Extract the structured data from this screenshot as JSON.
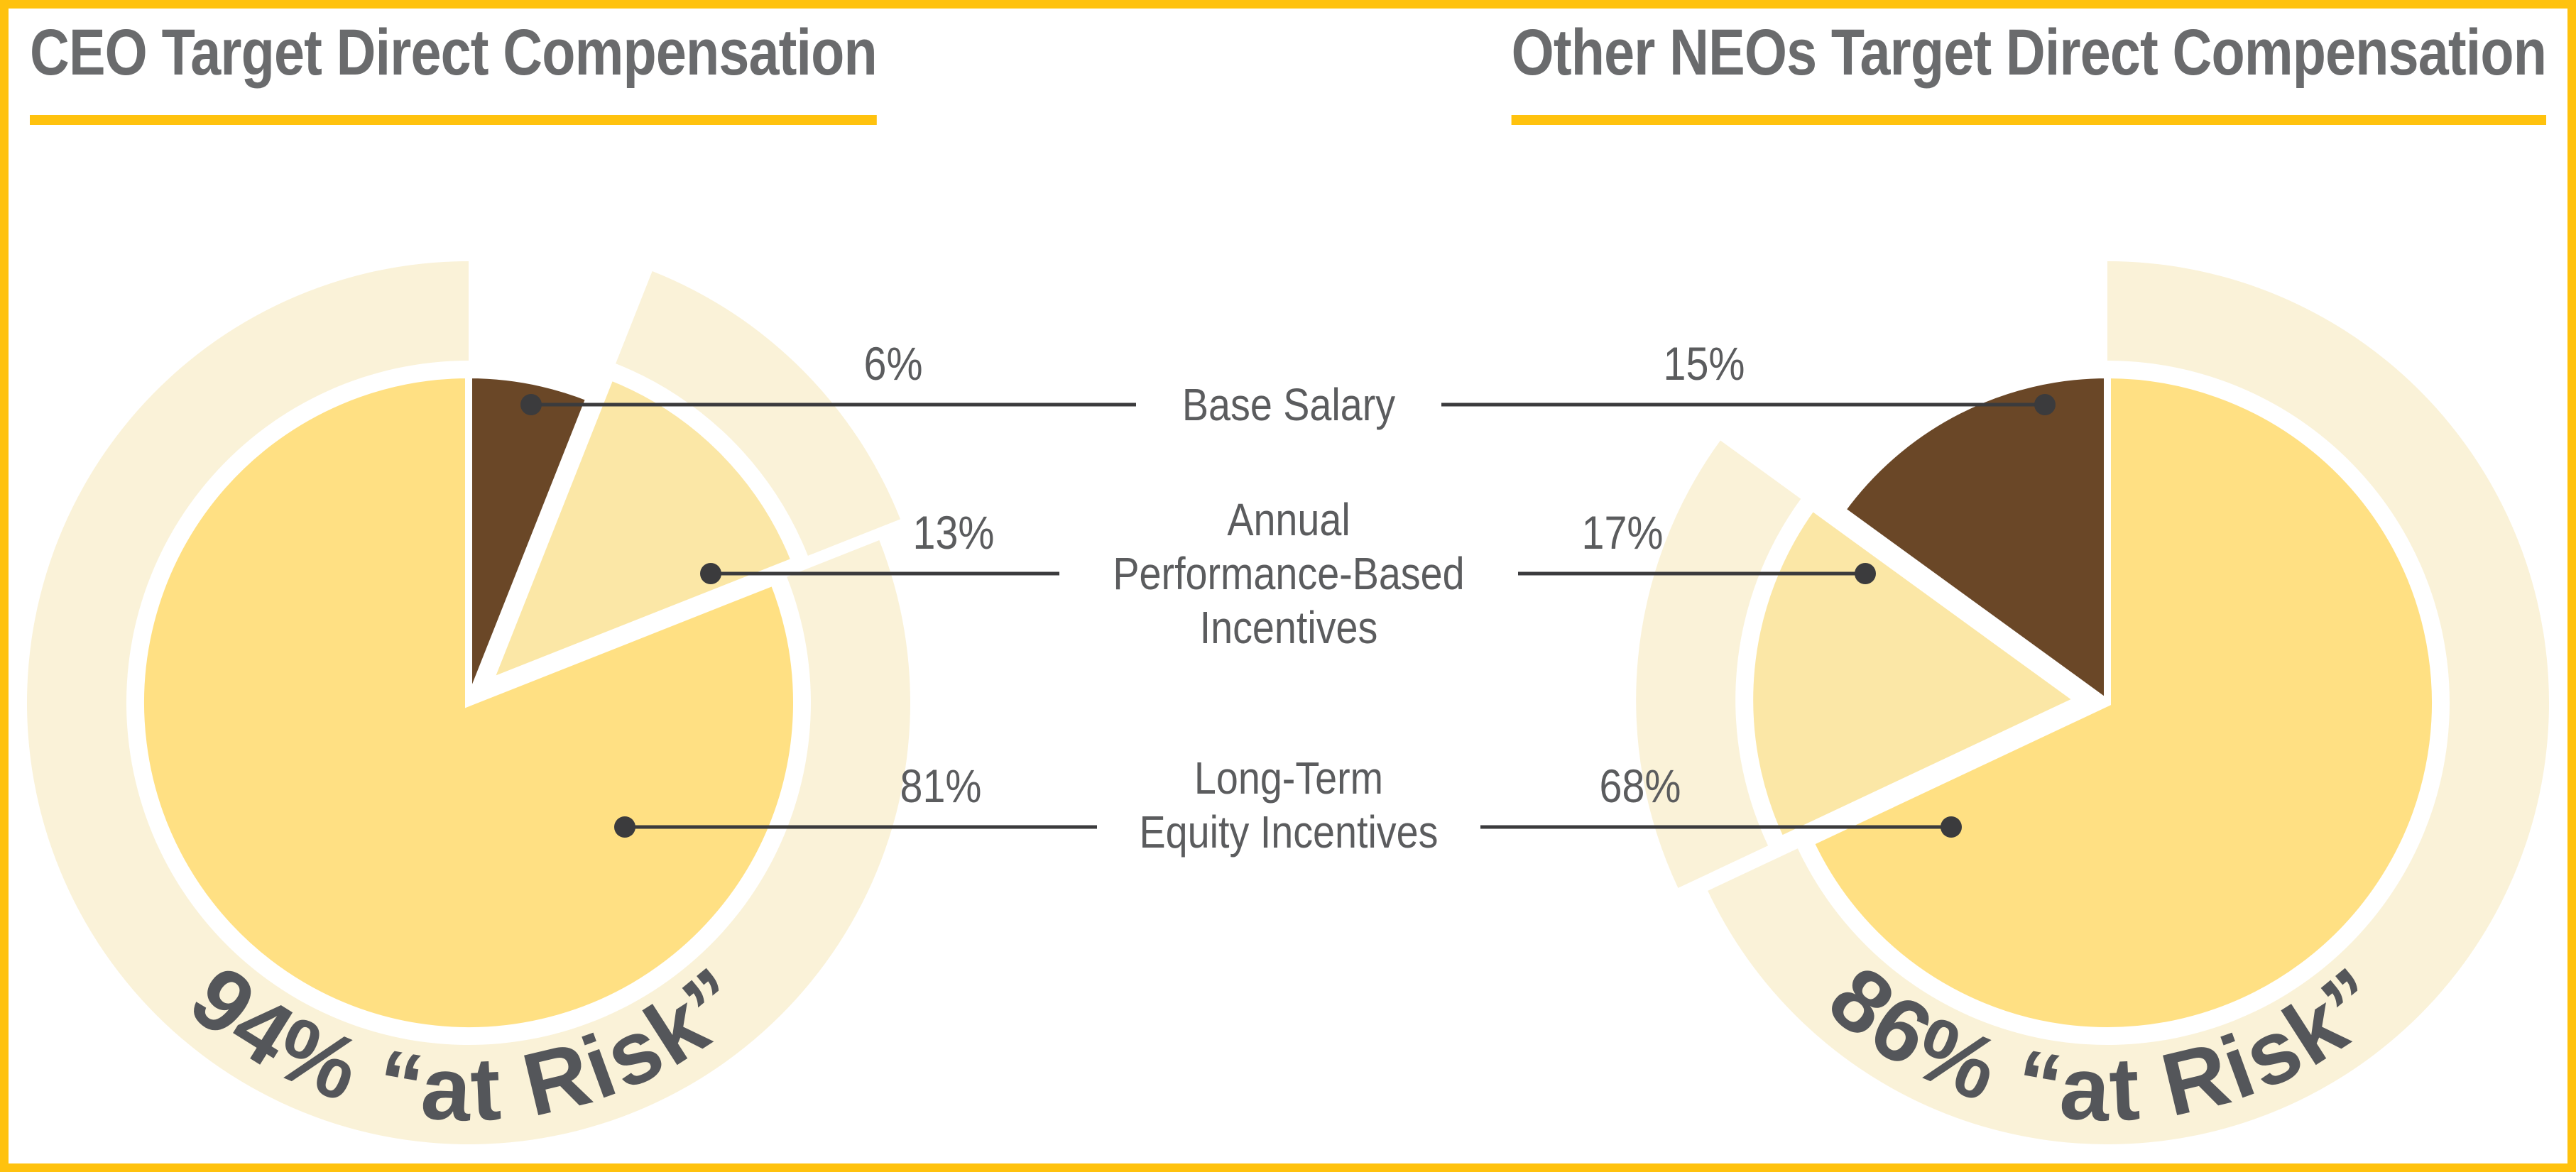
{
  "chart_data": [
    {
      "type": "pie",
      "title": "CEO Target Direct Compensation",
      "categories": [
        "Base Salary",
        "Annual Performance-Based Incentives",
        "Long-Term Equity Incentives"
      ],
      "values": [
        6,
        13,
        81
      ],
      "value_labels": [
        "6%",
        "13%",
        "81%"
      ],
      "annotation": "94% “at Risk”",
      "at_risk_pct": 94,
      "direction": "clockwise",
      "start_angle_deg": 0,
      "exploded_slice": "Annual Performance-Based Incentives",
      "colors": [
        "#6A4727",
        "#FBE7A6",
        "#FFE083"
      ],
      "ring_color": "#FAF2D8",
      "legend_position": "center-shared",
      "grid": false
    },
    {
      "type": "pie",
      "title": "Other NEOs Target Direct Compensation",
      "categories": [
        "Base Salary",
        "Annual Performance-Based Incentives",
        "Long-Term Equity Incentives"
      ],
      "values": [
        15,
        17,
        68
      ],
      "value_labels": [
        "15%",
        "17%",
        "68%"
      ],
      "annotation": "86% “at Risk”",
      "at_risk_pct": 86,
      "direction": "counterclockwise",
      "start_angle_deg": 0,
      "exploded_slice": "Annual Performance-Based Incentives",
      "colors": [
        "#6A4727",
        "#FBE7A6",
        "#FFE083"
      ],
      "ring_color": "#FAF2D8",
      "legend_position": "center-shared",
      "grid": false
    }
  ],
  "rows": [
    {
      "label_lines": [
        "Base Salary"
      ],
      "left_pct": "6%",
      "right_pct": "15%"
    },
    {
      "label_lines": [
        "Annual",
        "Performance-Based",
        "Incentives"
      ],
      "left_pct": "13%",
      "right_pct": "17%"
    },
    {
      "label_lines": [
        "Long-Term",
        "Equity Incentives"
      ],
      "left_pct": "81%",
      "right_pct": "68%"
    }
  ],
  "styles": {
    "accent_gold": "#FFC20E",
    "title_color": "#6A6B6D",
    "text_color": "#5B5C5E",
    "arc_text_color": "#54565A",
    "leader_color": "#3B3B3D",
    "slice_separator": "#FFFFFF"
  }
}
